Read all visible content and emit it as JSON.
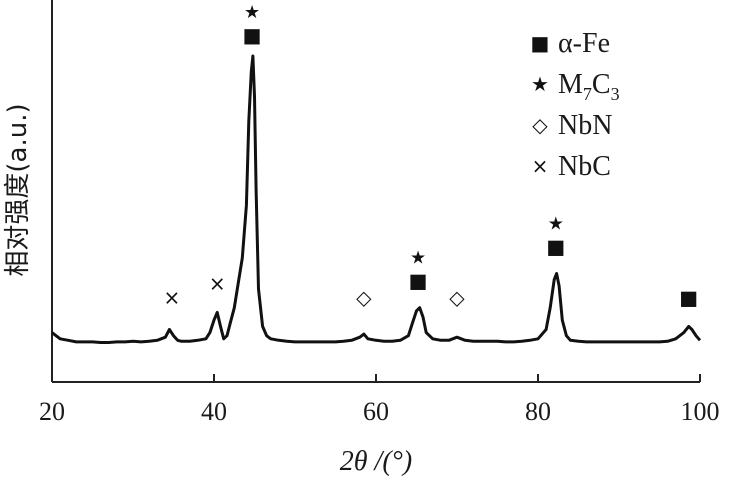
{
  "chart_data": {
    "type": "line",
    "xlabel": "2θ /(°)",
    "ylabel": "相对强度(a.u.)",
    "xlim": [
      20,
      100
    ],
    "xticks": [
      20,
      40,
      60,
      80,
      100
    ],
    "y_ticks_shown": false,
    "series": [
      {
        "x": [
          20,
          21,
          22,
          23,
          24,
          25,
          26,
          27,
          28,
          29,
          30,
          31,
          32,
          33,
          34,
          34.5,
          35,
          35.5,
          36,
          37,
          38,
          39,
          39.5,
          40,
          40.4,
          40.8,
          41.2,
          41.6,
          42,
          42.5,
          43,
          43.5,
          44,
          44.3,
          44.6,
          44.8,
          45,
          45.2,
          45.5,
          46,
          46.5,
          47,
          48,
          49,
          50,
          51,
          52,
          53,
          54,
          55,
          56,
          57,
          58,
          58.5,
          59,
          60,
          61,
          62,
          63,
          64,
          64.5,
          65,
          65.4,
          65.8,
          66.2,
          67,
          68,
          69,
          70,
          71,
          72,
          73,
          74,
          75,
          76,
          77,
          78,
          79,
          80,
          81,
          81.5,
          82,
          82.3,
          82.6,
          83,
          83.5,
          84,
          85,
          86,
          87,
          88,
          89,
          90,
          91,
          92,
          93,
          94,
          95,
          96,
          97,
          98,
          98.6,
          99,
          99.5,
          100
        ],
        "y": [
          4,
          2,
          1.5,
          1,
          1,
          1,
          0.8,
          0.8,
          1,
          1,
          1.2,
          1,
          1.2,
          1.5,
          2.5,
          5,
          3,
          1.5,
          1.2,
          1.2,
          1.5,
          2,
          4,
          8,
          10.5,
          6,
          2,
          3,
          7,
          12,
          20,
          28,
          45,
          72,
          88,
          93,
          80,
          50,
          18,
          6,
          3,
          2,
          1.5,
          1.2,
          1,
          1,
          1,
          1,
          1,
          1,
          1.2,
          1.5,
          2.5,
          3.5,
          2,
          1.5,
          1.2,
          1.2,
          1.5,
          3,
          7,
          11,
          12,
          9,
          4,
          2,
          1.5,
          1.5,
          2.5,
          1.5,
          1.2,
          1.2,
          1.2,
          1.2,
          1,
          1,
          1.2,
          1.5,
          2,
          5,
          12,
          21,
          23,
          19,
          8,
          3,
          1.5,
          1.2,
          1,
          1,
          1,
          1,
          1,
          1,
          1,
          1,
          1,
          1,
          1.2,
          2,
          4,
          6,
          5,
          3,
          1.5
        ]
      }
    ],
    "annotations": [
      {
        "x": 34.8,
        "marker": "×"
      },
      {
        "x": 40.4,
        "marker": "×"
      },
      {
        "x": 44.7,
        "marker": "■"
      },
      {
        "x": 44.7,
        "marker": "★"
      },
      {
        "x": 58.5,
        "marker": "◇"
      },
      {
        "x": 65.2,
        "marker": "■"
      },
      {
        "x": 65.2,
        "marker": "★"
      },
      {
        "x": 70.0,
        "marker": "◇"
      },
      {
        "x": 82.2,
        "marker": "■"
      },
      {
        "x": 82.2,
        "marker": "★"
      },
      {
        "x": 98.6,
        "marker": "■"
      }
    ],
    "legend": {
      "placement": "top-right",
      "entries": [
        {
          "marker": "■",
          "label": "α-Fe"
        },
        {
          "marker": "★",
          "label": "M",
          "sub1": "7",
          "mid": "C",
          "sub2": "3"
        },
        {
          "marker": "◇",
          "label": "NbN"
        },
        {
          "marker": "×",
          "label": "NbC"
        }
      ]
    },
    "colors": {
      "line": "#111111",
      "axis": "#222222",
      "text": "#1a1a1a"
    }
  }
}
